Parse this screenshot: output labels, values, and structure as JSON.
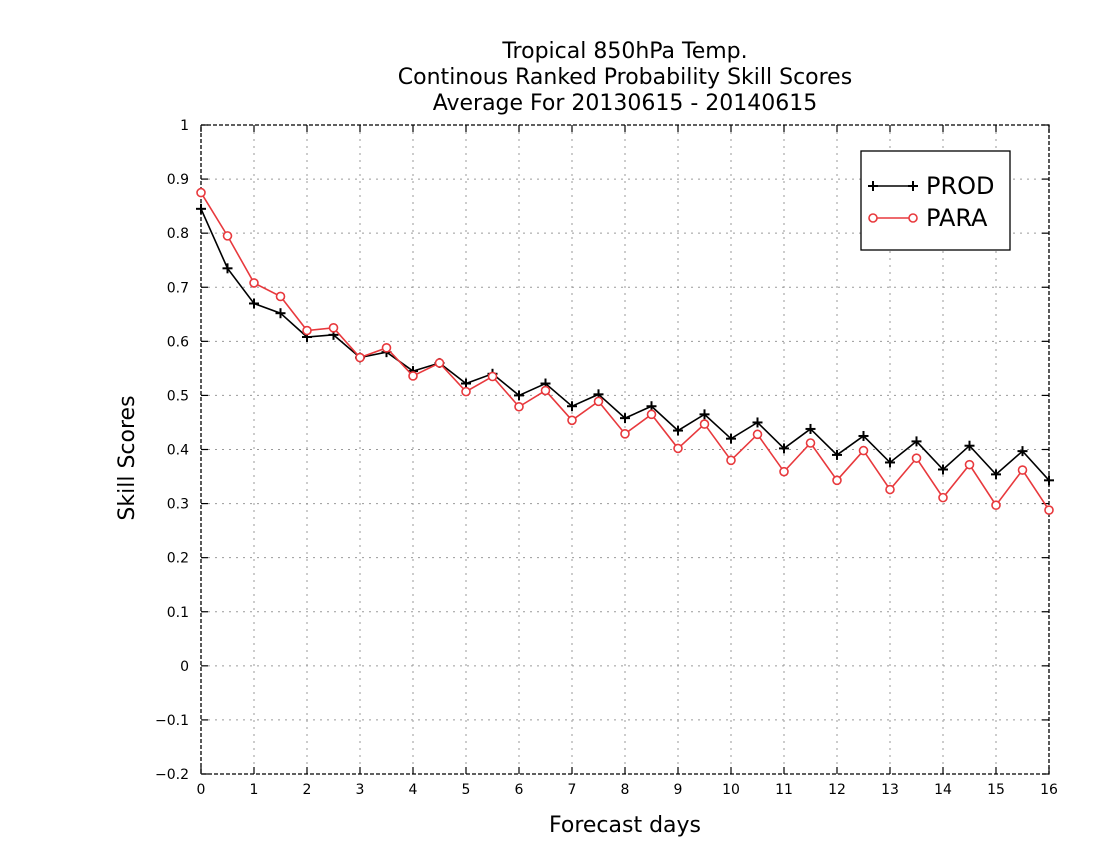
{
  "chart_data": {
    "type": "line",
    "title": [
      "Tropical 850hPa Temp.",
      "Continous Ranked Probability Skill Scores",
      "Average For 20130615 - 20140615"
    ],
    "xlabel": "Forecast days",
    "ylabel": "Skill Scores",
    "xlim": [
      0,
      16
    ],
    "ylim": [
      -0.2,
      1
    ],
    "xticks": [
      0,
      1,
      2,
      3,
      4,
      5,
      6,
      7,
      8,
      9,
      10,
      11,
      12,
      13,
      14,
      15,
      16
    ],
    "yticks": [
      -0.2,
      -0.1,
      0,
      0.1,
      0.2,
      0.3,
      0.4,
      0.5,
      0.6,
      0.7,
      0.8,
      0.9,
      1
    ],
    "grid": true,
    "legend_position": "top-right",
    "x": [
      0,
      0.5,
      1,
      1.5,
      2,
      2.5,
      3,
      3.5,
      4,
      4.5,
      5,
      5.5,
      6,
      6.5,
      7,
      7.5,
      8,
      8.5,
      9,
      9.5,
      10,
      10.5,
      11,
      11.5,
      12,
      12.5,
      13,
      13.5,
      14,
      14.5,
      15,
      15.5,
      16
    ],
    "series": [
      {
        "name": "PROD",
        "color": "#000000",
        "marker": "plus",
        "values": [
          0.845,
          0.735,
          0.67,
          0.652,
          0.608,
          0.612,
          0.57,
          0.58,
          0.545,
          0.56,
          0.522,
          0.54,
          0.5,
          0.522,
          0.48,
          0.502,
          0.458,
          0.48,
          0.435,
          0.465,
          0.42,
          0.45,
          0.402,
          0.438,
          0.39,
          0.425,
          0.376,
          0.415,
          0.363,
          0.407,
          0.354,
          0.397,
          0.343
        ]
      },
      {
        "name": "PARA",
        "color": "#e8393d",
        "marker": "circle",
        "values": [
          0.875,
          0.795,
          0.708,
          0.683,
          0.62,
          0.625,
          0.57,
          0.588,
          0.536,
          0.56,
          0.507,
          0.535,
          0.479,
          0.509,
          0.454,
          0.489,
          0.429,
          0.465,
          0.402,
          0.447,
          0.38,
          0.428,
          0.359,
          0.412,
          0.343,
          0.398,
          0.326,
          0.384,
          0.311,
          0.372,
          0.297,
          0.362,
          0.288
        ]
      }
    ]
  }
}
